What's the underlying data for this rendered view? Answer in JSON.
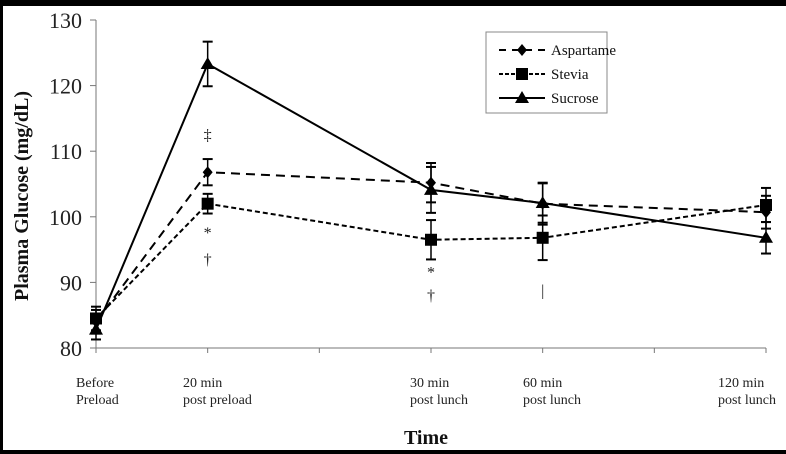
{
  "chart_data": {
    "type": "line",
    "title": "",
    "xlabel": "Time",
    "ylabel": "Plasma Glucose (mg/dL)",
    "ylim": [
      80,
      130
    ],
    "yticks": [
      80,
      90,
      100,
      110,
      120,
      130
    ],
    "x_positions": [
      0,
      1,
      3,
      4,
      6
    ],
    "x_axis_ticks": [
      0,
      1,
      2,
      3,
      4,
      5,
      6
    ],
    "categories": [
      [
        "Before",
        "Preload"
      ],
      [
        "20 min",
        "post preload"
      ],
      [
        "30 min",
        "post lunch"
      ],
      [
        "60 min",
        "post lunch"
      ],
      [
        "120 min",
        "post lunch"
      ]
    ],
    "series": [
      {
        "name": "Aspartame",
        "marker": "diamond",
        "dash": "long-dash",
        "values": [
          84.0,
          106.8,
          105.2,
          102.0,
          100.7
        ],
        "err": [
          1.8,
          2.0,
          3.0,
          3.2,
          2.5
        ]
      },
      {
        "name": "Stevia",
        "marker": "square",
        "dash": "short-dash",
        "values": [
          84.5,
          102.0,
          96.5,
          96.8,
          101.8
        ],
        "err": [
          1.8,
          1.5,
          3.0,
          3.4,
          2.6
        ]
      },
      {
        "name": "Sucrose",
        "marker": "triangle",
        "dash": "solid",
        "values": [
          82.8,
          123.3,
          104.1,
          102.1,
          96.8
        ],
        "err": [
          1.5,
          3.4,
          3.5,
          3.0,
          2.4
        ]
      }
    ],
    "annotations": [
      {
        "text": "‡",
        "x": 1,
        "y": 112.5
      },
      {
        "text": "*",
        "x": 1,
        "y": 97.5
      },
      {
        "text": "†",
        "x": 1,
        "y": 93.5
      },
      {
        "text": "*",
        "x": 3,
        "y": 91.5
      },
      {
        "text": "†",
        "x": 3,
        "y": 88.0
      },
      {
        "text": "|",
        "x": 4,
        "y": 88.8
      }
    ],
    "legend_position": "top-right",
    "grid": false
  }
}
